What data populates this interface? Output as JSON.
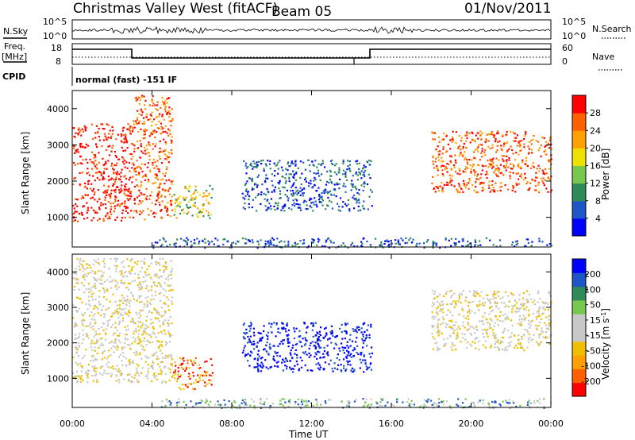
{
  "header": {
    "title": "Christmas Valley West (fitACF)",
    "beam": "Beam 05",
    "date": "01/Nov/2011"
  },
  "top_panels": {
    "nsky_label": "N.Sky",
    "nsky_ticks": [
      "10^5",
      "10^0"
    ],
    "nsearch_label": "N.Search",
    "nsearch_ticks": [
      "10^5",
      "10^0"
    ],
    "freq_label": "Freq.",
    "freq_unit": "[MHz]",
    "freq_ticks": [
      "18",
      "8"
    ],
    "nave_label": "Nave",
    "nave_ticks": [
      "60",
      "0"
    ],
    "cpid_label": "CPID",
    "cpid_text": "normal (fast) -151 IF"
  },
  "colors": {
    "power": [
      "#0000ff",
      "#1e56c8",
      "#2e8b57",
      "#78c850",
      "#f0e000",
      "#ffa000",
      "#ff6000",
      "#ff0000"
    ],
    "velocity": [
      "#ff0000",
      "#ff6000",
      "#ffa000",
      "#f0c000",
      "#c8c8c8",
      "#c8c8c8",
      "#78c850",
      "#2e8b57",
      "#1e56c8",
      "#0000ff"
    ]
  },
  "chart_data": [
    {
      "type": "heatmap",
      "name": "power",
      "ylabel": "Slant Range [km]",
      "xlabel": "Time UT",
      "x_ticks": [
        "00:00",
        "04:00",
        "08:00",
        "12:00",
        "16:00",
        "20:00",
        "00:00"
      ],
      "xlim_hours": [
        0,
        24
      ],
      "y_ticks": [
        "1000",
        "2000",
        "3000",
        "4000"
      ],
      "ylim_km": [
        180,
        4500
      ],
      "colorbar_label": "Power [dB]",
      "colorbar_ticks": [
        "28",
        "24",
        "20",
        "16",
        "12",
        "8",
        "4"
      ],
      "colorbar_range": [
        0,
        30
      ],
      "echo_regions": [
        {
          "hours": [
            0,
            3
          ],
          "km": [
            900,
            3600
          ],
          "level": "28"
        },
        {
          "hours": [
            3,
            5
          ],
          "km": [
            950,
            4400
          ],
          "level": "24"
        },
        {
          "hours": [
            5,
            7
          ],
          "km": [
            1000,
            1900
          ],
          "level": "16"
        },
        {
          "hours": [
            8.5,
            15
          ],
          "km": [
            1200,
            2600
          ],
          "level": "8"
        },
        {
          "hours": [
            18,
            24
          ],
          "km": [
            1700,
            3400
          ],
          "level": "24"
        },
        {
          "hours": [
            4,
            24
          ],
          "km": [
            180,
            450
          ],
          "level": "8"
        }
      ]
    },
    {
      "type": "heatmap",
      "name": "velocity",
      "ylabel": "Slant Range [km]",
      "xlabel": "Time UT",
      "x_ticks": [
        "00:00",
        "04:00",
        "08:00",
        "12:00",
        "16:00",
        "20:00",
        "00:00"
      ],
      "xlim_hours": [
        0,
        24
      ],
      "y_ticks": [
        "1000",
        "2000",
        "3000",
        "4000"
      ],
      "ylim_km": [
        180,
        4500
      ],
      "colorbar_label": "Velocity [m s",
      "colorbar_label_sup": "-1",
      "colorbar_label_end": "]",
      "colorbar_ticks": [
        "200",
        "100",
        "50",
        "15",
        "-15",
        "-50",
        "-100",
        "-200"
      ],
      "echo_regions": [
        {
          "hours": [
            0,
            5
          ],
          "km": [
            900,
            4400
          ],
          "level": "-15"
        },
        {
          "hours": [
            5,
            7
          ],
          "km": [
            700,
            1600
          ],
          "level": "-100"
        },
        {
          "hours": [
            8.5,
            15
          ],
          "km": [
            1200,
            2600
          ],
          "level": "200"
        },
        {
          "hours": [
            18,
            24
          ],
          "km": [
            1800,
            3500
          ],
          "level": "-15"
        },
        {
          "hours": [
            4,
            24
          ],
          "km": [
            180,
            450
          ],
          "level": "50"
        }
      ]
    }
  ]
}
